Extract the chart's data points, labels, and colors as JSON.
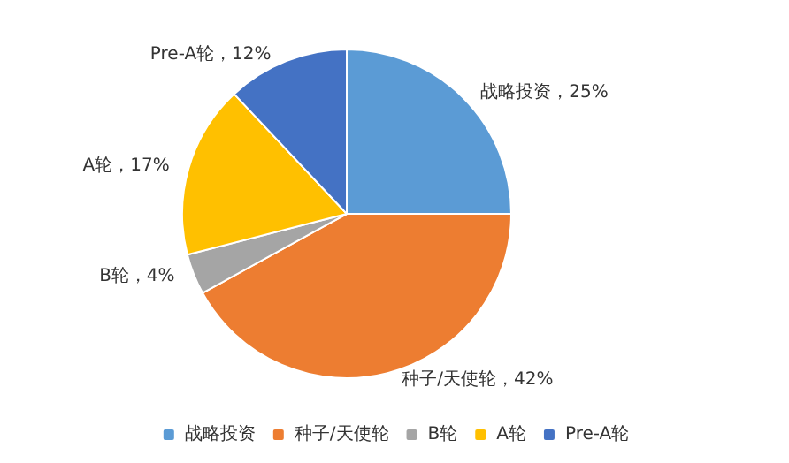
{
  "chart_data": {
    "type": "pie",
    "categories": [
      "战略投资",
      "种子/天使轮",
      "B轮",
      "A轮",
      "Pre-A轮"
    ],
    "values": [
      25,
      42,
      4,
      17,
      12
    ],
    "value_labels": [
      "，25%",
      "，42%",
      "，4%",
      "，17%",
      "，12%"
    ],
    "colors": [
      "#5b9bd5",
      "#ed7d31",
      "#a5a5a5",
      "#ffc000",
      "#4472c4"
    ],
    "legend": "bottom"
  }
}
